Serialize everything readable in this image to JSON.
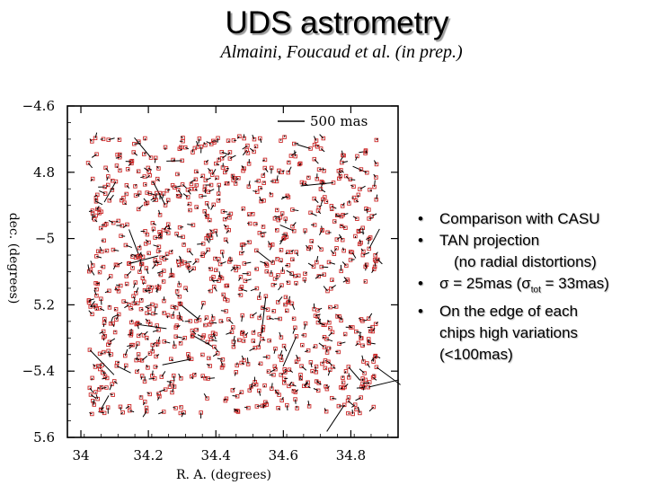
{
  "slide": {
    "title": "UDS astrometry",
    "subtitle": "Almaini, Foucaud et al. (in prep.)"
  },
  "bullets": [
    {
      "lines": [
        "Comparison with CASU"
      ]
    },
    {
      "lines": [
        "TAN projection",
        "(no radial distortions)"
      ]
    },
    {
      "lines": [
        "σ = 25mas (σ",
        "tot",
        " = 33mas)"
      ]
    },
    {
      "lines": [
        "On the edge of each",
        "chips high variations",
        "(<100mas)"
      ]
    }
  ],
  "chart_data": {
    "type": "scatter",
    "title": "",
    "xlabel": "R. A. (degrees)",
    "ylabel": "dec. (degrees)",
    "xlim": [
      33.96,
      34.94
    ],
    "ylim": [
      -5.6,
      -4.6
    ],
    "x_ticks": [
      34.0,
      34.2,
      34.4,
      34.6,
      34.8
    ],
    "x_tick_labels": [
      "34",
      "34.2",
      "34.4",
      "34.6",
      "34.8"
    ],
    "y_ticks": [
      -4.6,
      -4.8,
      -5.0,
      -5.2,
      -5.4,
      -5.6
    ],
    "y_tick_labels": [
      "−4.6",
      "4.8",
      "−5",
      "5.2",
      "−5.4",
      "5.6"
    ],
    "scale_bar_label": "500 mas",
    "marker_color": "#cc2a2a",
    "vector_color": "#000000",
    "region": {
      "x": [
        34.02,
        34.88
      ],
      "y": [
        -5.53,
        -4.69
      ]
    },
    "vector_unit_mas_to_deg": 0.00016
  }
}
